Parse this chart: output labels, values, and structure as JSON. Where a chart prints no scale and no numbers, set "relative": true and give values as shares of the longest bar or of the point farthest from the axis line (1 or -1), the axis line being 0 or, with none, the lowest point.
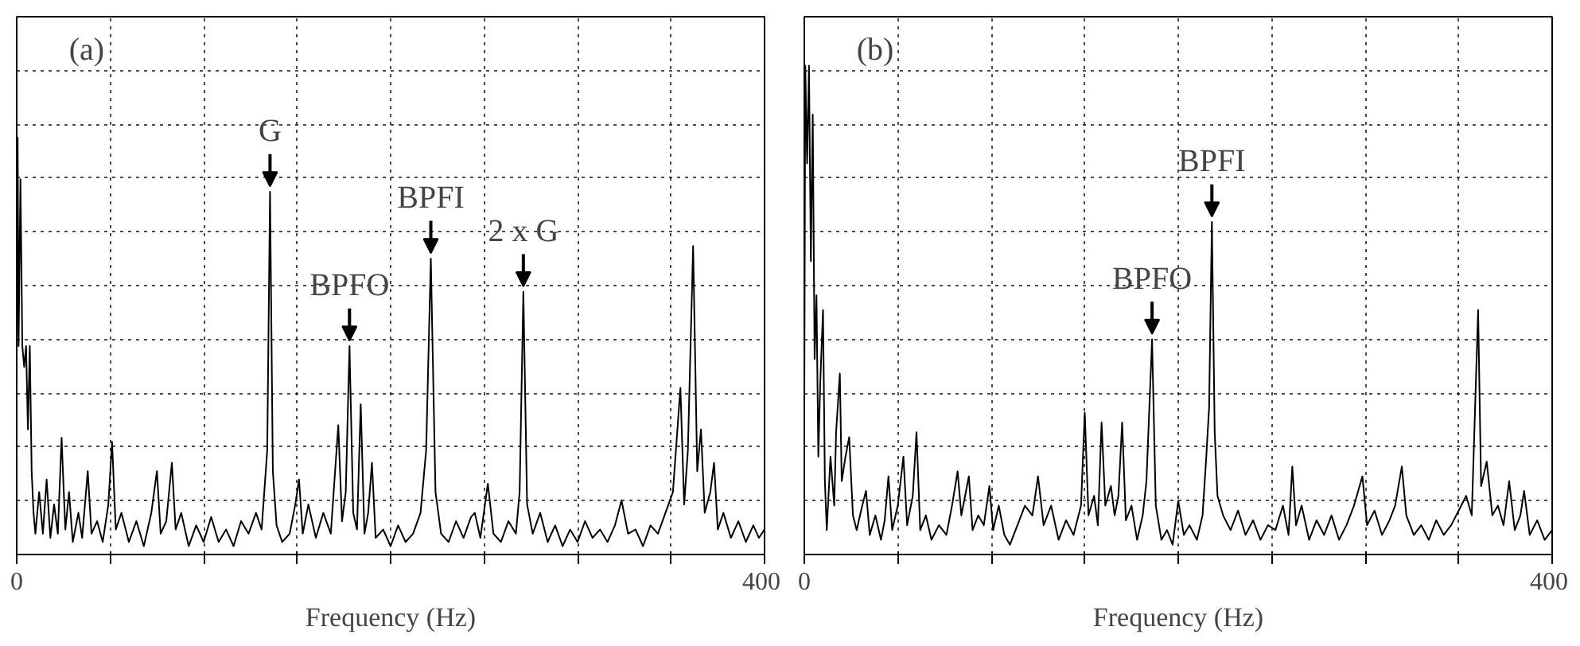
{
  "chart_data": [
    {
      "type": "line",
      "relative": true,
      "xlabel": "Frequency (Hz)",
      "xlim": [
        0,
        400
      ],
      "grid": true,
      "xticks": [
        {
          "value": 0,
          "label": "0"
        },
        {
          "value": 50,
          "label": null
        },
        {
          "value": 100,
          "label": null
        },
        {
          "value": 150,
          "label": null
        },
        {
          "value": 200,
          "label": null
        },
        {
          "value": 250,
          "label": null
        },
        {
          "value": 300,
          "label": null
        },
        {
          "value": 350,
          "label": null
        },
        {
          "value": 400,
          "label": "400"
        }
      ],
      "annotations": [
        "(a)",
        {
          "text": "G",
          "x": 135.5,
          "y": 0.87
        },
        {
          "text": "BPFO",
          "x": 178,
          "y": 0.5
        },
        {
          "text": "BPFI",
          "x": 221.5,
          "y": 0.71
        },
        {
          "text": "2 x G",
          "x": 271,
          "y": 0.63
        }
      ],
      "series": [
        {
          "color": "#000000",
          "x": [
            0,
            0.5,
            1,
            2,
            3,
            4,
            5,
            6,
            7,
            8,
            9,
            10,
            12,
            14,
            16,
            18,
            20,
            22,
            24,
            26,
            28,
            30,
            33,
            35,
            38,
            40,
            43,
            46,
            49,
            51,
            53,
            56,
            60,
            64,
            68,
            72,
            75,
            77,
            80,
            83,
            85,
            88,
            92,
            96,
            100,
            104,
            108,
            112,
            116,
            120,
            124,
            128,
            131,
            134,
            135.5,
            137,
            139,
            142,
            146,
            149,
            151,
            153,
            156,
            160,
            164,
            168,
            172,
            174,
            176,
            178,
            180,
            182,
            184,
            186,
            188,
            190,
            192,
            196,
            200,
            204,
            208,
            212,
            216,
            219,
            221.5,
            224,
            227,
            231,
            235,
            239,
            243,
            245,
            248,
            252,
            255,
            259,
            263,
            267,
            269,
            271,
            273,
            276,
            280,
            284,
            288,
            292,
            296,
            300,
            304,
            308,
            312,
            316,
            320,
            323.5,
            327,
            331,
            335,
            339,
            343,
            347,
            351,
            355,
            357,
            359,
            361.8,
            364,
            366,
            368,
            371,
            373,
            375,
            378,
            382,
            386,
            390,
            394,
            397,
            400
          ],
          "values": [
            0.5,
            1.0,
            0.5,
            0.9,
            0.5,
            0.45,
            0.5,
            0.3,
            0.5,
            0.2,
            0.1,
            0.05,
            0.15,
            0.05,
            0.18,
            0.04,
            0.12,
            0.05,
            0.28,
            0.06,
            0.15,
            0.03,
            0.1,
            0.04,
            0.2,
            0.05,
            0.08,
            0.03,
            0.12,
            0.27,
            0.06,
            0.1,
            0.03,
            0.08,
            0.02,
            0.1,
            0.2,
            0.05,
            0.08,
            0.22,
            0.06,
            0.1,
            0.02,
            0.07,
            0.03,
            0.09,
            0.03,
            0.06,
            0.02,
            0.08,
            0.05,
            0.1,
            0.06,
            0.25,
            0.87,
            0.2,
            0.07,
            0.03,
            0.05,
            0.12,
            0.18,
            0.05,
            0.12,
            0.04,
            0.1,
            0.05,
            0.31,
            0.08,
            0.15,
            0.5,
            0.1,
            0.06,
            0.36,
            0.05,
            0.1,
            0.22,
            0.04,
            0.06,
            0.02,
            0.07,
            0.03,
            0.05,
            0.1,
            0.25,
            0.71,
            0.15,
            0.05,
            0.03,
            0.08,
            0.04,
            0.09,
            0.1,
            0.04,
            0.17,
            0.05,
            0.03,
            0.08,
            0.05,
            0.15,
            0.63,
            0.12,
            0.05,
            0.1,
            0.03,
            0.07,
            0.02,
            0.06,
            0.03,
            0.08,
            0.04,
            0.06,
            0.03,
            0.07,
            0.13,
            0.05,
            0.06,
            0.02,
            0.07,
            0.05,
            0.1,
            0.15,
            0.4,
            0.12,
            0.25,
            0.74,
            0.2,
            0.3,
            0.1,
            0.15,
            0.22,
            0.06,
            0.1,
            0.04,
            0.08,
            0.03,
            0.07,
            0.04,
            0.06
          ]
        }
      ]
    },
    {
      "type": "line",
      "relative": true,
      "xlabel": "Frequency (Hz)",
      "xlim": [
        0,
        400
      ],
      "grid": true,
      "xticks": [
        {
          "value": 0,
          "label": "0"
        },
        {
          "value": 50,
          "label": null
        },
        {
          "value": 100,
          "label": null
        },
        {
          "value": 150,
          "label": null
        },
        {
          "value": 200,
          "label": null
        },
        {
          "value": 250,
          "label": null
        },
        {
          "value": 300,
          "label": null
        },
        {
          "value": 350,
          "label": null
        },
        {
          "value": 400,
          "label": "400"
        }
      ],
      "annotations": [
        "(b)",
        {
          "text": "BPFO",
          "x": 186,
          "y": 0.44
        },
        {
          "text": "BPFI",
          "x": 218,
          "y": 0.68
        }
      ],
      "series": [
        {
          "color": "#000000",
          "x": [
            0,
            0.5,
            1.5,
            2.5,
            3.5,
            4.5,
            5.5,
            6.5,
            7.5,
            8.5,
            10,
            11,
            12,
            14,
            16,
            17,
            19,
            20,
            22,
            24,
            26,
            28,
            31,
            33,
            35,
            38,
            41,
            43,
            45,
            47,
            50,
            53,
            55,
            58,
            60,
            62,
            65,
            68,
            72,
            76,
            79,
            82,
            84,
            86,
            88,
            90,
            93,
            96,
            99,
            101,
            104,
            107,
            110,
            114,
            118,
            122,
            125,
            128,
            132,
            136,
            140,
            144,
            148,
            150,
            152,
            155,
            157,
            159,
            161,
            164,
            166,
            168,
            170,
            172,
            175,
            178,
            181,
            183,
            186,
            188,
            191,
            194,
            197,
            200,
            203,
            206,
            210,
            213,
            215,
            216.5,
            218,
            219.5,
            221,
            224,
            228,
            232,
            236,
            240,
            244,
            248,
            252,
            256,
            259,
            261,
            263,
            266,
            270,
            274,
            278,
            282,
            286,
            290,
            294,
            298.5,
            301,
            305,
            309,
            313,
            316,
            319.6,
            322,
            326,
            330,
            334,
            338,
            342,
            346,
            350,
            354,
            357,
            360.4,
            362,
            365,
            368,
            371,
            374,
            377,
            380,
            383,
            385,
            388,
            392,
            396,
            400
          ],
          "values": [
            0.3,
            1.0,
            0.8,
            1.0,
            0.6,
            0.9,
            0.4,
            0.53,
            0.2,
            0.35,
            0.5,
            0.15,
            0.05,
            0.2,
            0.1,
            0.25,
            0.37,
            0.15,
            0.2,
            0.24,
            0.08,
            0.05,
            0.1,
            0.13,
            0.04,
            0.08,
            0.03,
            0.07,
            0.16,
            0.05,
            0.1,
            0.2,
            0.06,
            0.12,
            0.25,
            0.05,
            0.08,
            0.03,
            0.06,
            0.04,
            0.1,
            0.17,
            0.08,
            0.12,
            0.16,
            0.05,
            0.08,
            0.06,
            0.14,
            0.05,
            0.1,
            0.04,
            0.02,
            0.06,
            0.1,
            0.08,
            0.16,
            0.06,
            0.1,
            0.03,
            0.07,
            0.04,
            0.1,
            0.29,
            0.08,
            0.12,
            0.06,
            0.27,
            0.1,
            0.14,
            0.08,
            0.12,
            0.27,
            0.07,
            0.1,
            0.03,
            0.08,
            0.15,
            0.44,
            0.1,
            0.03,
            0.05,
            0.02,
            0.11,
            0.04,
            0.06,
            0.03,
            0.08,
            0.2,
            0.3,
            0.68,
            0.25,
            0.12,
            0.08,
            0.05,
            0.09,
            0.04,
            0.07,
            0.03,
            0.06,
            0.05,
            0.1,
            0.04,
            0.18,
            0.06,
            0.1,
            0.03,
            0.07,
            0.04,
            0.08,
            0.03,
            0.06,
            0.1,
            0.16,
            0.06,
            0.09,
            0.04,
            0.07,
            0.1,
            0.18,
            0.08,
            0.04,
            0.06,
            0.03,
            0.07,
            0.04,
            0.06,
            0.09,
            0.12,
            0.08,
            0.5,
            0.14,
            0.19,
            0.08,
            0.1,
            0.06,
            0.15,
            0.05,
            0.08,
            0.13,
            0.04,
            0.07,
            0.03,
            0.05
          ]
        }
      ]
    }
  ]
}
